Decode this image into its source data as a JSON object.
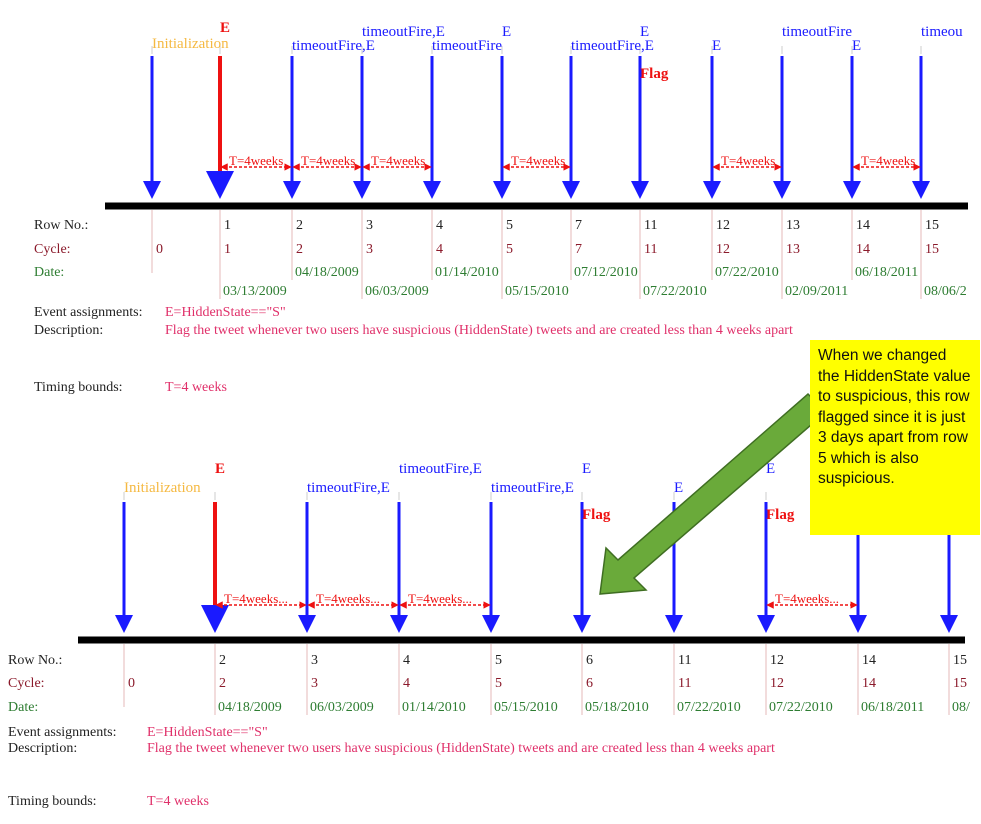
{
  "colors": {
    "axis": "#000000",
    "arrow": "#1a1aff",
    "event": "#ee1111",
    "init": "#f5b942",
    "window": "#ee1111",
    "row_label": "#222222",
    "cycle": "#8b1a2b",
    "date": "#2e7d32",
    "pink": "#e0306a",
    "callout_bg": "#ffff00",
    "green_arrow": "#6aaa3a"
  },
  "labels": {
    "row": "Row No.:",
    "cycle": "Cycle:",
    "date": "Date:",
    "event_assign": "Event assignments:",
    "description": "Description:",
    "timing": "Timing bounds:"
  },
  "panels": [
    {
      "name": "before",
      "events": [
        {
          "row": "",
          "cycle": "0",
          "date": "",
          "label": "Initialization",
          "kind": "init"
        },
        {
          "row": "1",
          "cycle": "1",
          "date": "03/13/2009",
          "label": "E",
          "kind": "start"
        },
        {
          "row": "2",
          "cycle": "2",
          "date": "04/18/2009",
          "label": "timeoutFire,E",
          "kind": "normal"
        },
        {
          "row": "3",
          "cycle": "3",
          "date": "06/03/2009",
          "label": "timeoutFire,E",
          "kind": "normal"
        },
        {
          "row": "4",
          "cycle": "4",
          "date": "01/14/2010",
          "label": "timeoutFire",
          "kind": "normal"
        },
        {
          "row": "5",
          "cycle": "5",
          "date": "05/15/2010",
          "label": "E",
          "kind": "normal"
        },
        {
          "row": "7",
          "cycle": "7",
          "date": "07/12/2010",
          "label": "timeoutFire,E",
          "kind": "normal"
        },
        {
          "row": "11",
          "cycle": "11",
          "date": "07/22/2010",
          "label": "E",
          "flag": "Flag",
          "kind": "normal"
        },
        {
          "row": "12",
          "cycle": "12",
          "date": "07/22/2010",
          "label": "E",
          "kind": "normal"
        },
        {
          "row": "13",
          "cycle": "13",
          "date": "02/09/2011",
          "label": "timeoutFire",
          "kind": "normal"
        },
        {
          "row": "14",
          "cycle": "14",
          "date": "06/18/2011",
          "label": "E",
          "kind": "normal"
        },
        {
          "row": "15",
          "cycle": "15",
          "date": "08/06/2",
          "label": "timeou",
          "kind": "normal"
        }
      ],
      "windows": [
        "T=4weeks",
        "T=4weeks",
        "T=4weeks",
        "T=4weeks",
        "T=4weeks",
        "T=4weeks"
      ],
      "event_assignment": "E=HiddenState==\"S\"",
      "description": "Flag the tweet whenever two users have suspicious (HiddenState) tweets and are created less than 4 weeks apart",
      "timing": "T=4 weeks"
    },
    {
      "name": "after",
      "events": [
        {
          "row": "",
          "cycle": "0",
          "date": "",
          "label": "Initialization",
          "kind": "init"
        },
        {
          "row": "2",
          "cycle": "2",
          "date": "04/18/2009",
          "label": "E",
          "kind": "start"
        },
        {
          "row": "3",
          "cycle": "3",
          "date": "06/03/2009",
          "label": "timeoutFire,E",
          "kind": "normal"
        },
        {
          "row": "4",
          "cycle": "4",
          "date": "01/14/2010",
          "label": "timeoutFire,E",
          "kind": "normal"
        },
        {
          "row": "5",
          "cycle": "5",
          "date": "05/15/2010",
          "label": "timeoutFire,E",
          "kind": "normal"
        },
        {
          "row": "6",
          "cycle": "6",
          "date": "05/18/2010",
          "label": "E",
          "flag": "Flag",
          "kind": "normal"
        },
        {
          "row": "11",
          "cycle": "11",
          "date": "07/22/2010",
          "label": "E",
          "kind": "normal"
        },
        {
          "row": "12",
          "cycle": "12",
          "date": "07/22/2010",
          "label": "E",
          "flag": "Flag",
          "kind": "normal"
        },
        {
          "row": "14",
          "cycle": "14",
          "date": "06/18/2011",
          "label": "",
          "kind": "normal"
        },
        {
          "row": "15",
          "cycle": "15",
          "date": "08/",
          "label": "",
          "kind": "normal"
        }
      ],
      "windows": [
        "T=4weeks...",
        "T=4weeks...",
        "T=4weeks...",
        "T=4weeks..."
      ],
      "event_assignment": "E=HiddenState==\"S\"",
      "description": "Flag the tweet whenever two users have suspicious (HiddenState) tweets and are created less than 4 weeks apart",
      "timing": "T=4 weeks"
    }
  ],
  "callout": {
    "text": "When we changed the HiddenState value to suspicious, this row flagged since it is just 3 days apart from row 5 which is also suspicious."
  }
}
